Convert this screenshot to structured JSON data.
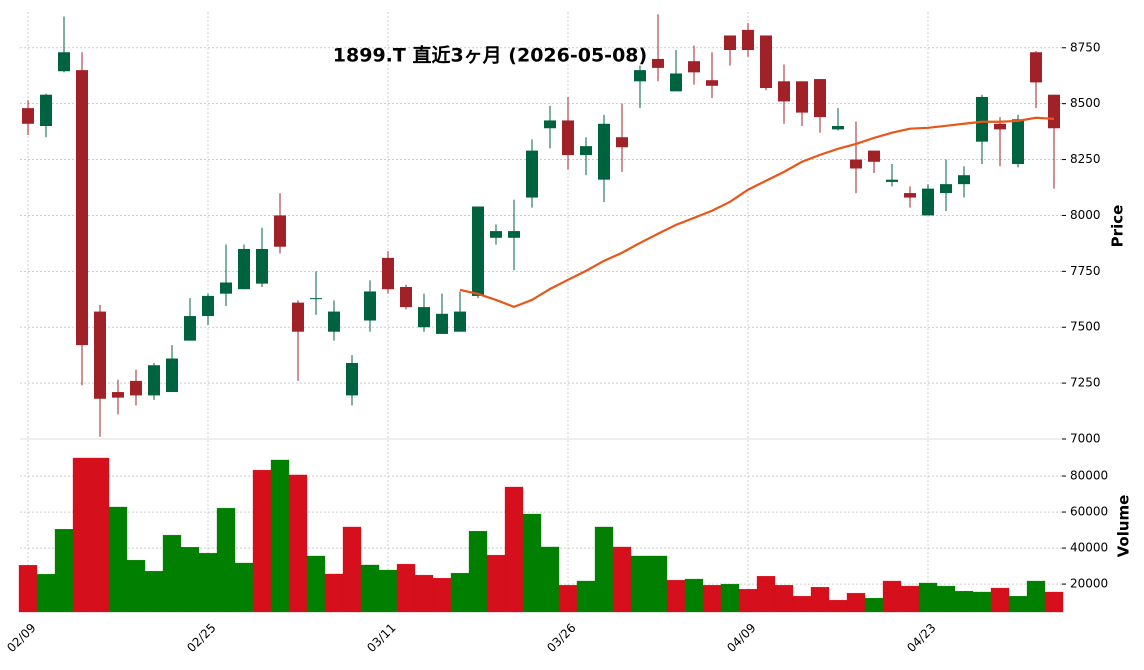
{
  "chart_data": {
    "type": "candlestick",
    "title": "1899.T  直近3ヶ月  (2026-05-08)",
    "categories": [
      "02/09",
      null,
      null,
      null,
      null,
      null,
      null,
      null,
      null,
      null,
      "02/25",
      null,
      null,
      null,
      null,
      null,
      null,
      null,
      null,
      null,
      "03/11",
      null,
      null,
      null,
      null,
      null,
      null,
      null,
      null,
      null,
      "03/26",
      null,
      null,
      null,
      null,
      null,
      null,
      null,
      null,
      null,
      "04/09",
      null,
      null,
      null,
      null,
      null,
      null,
      null,
      null,
      null,
      "04/23",
      null,
      null,
      null,
      null,
      null,
      null,
      null
    ],
    "open": [
      8480,
      8400,
      8645,
      8650,
      7570,
      7210,
      7260,
      7195,
      7210,
      7440,
      7550,
      7650,
      7670,
      7695,
      8000,
      7610,
      7630,
      7480,
      7195,
      7530,
      7810,
      7680,
      7500,
      7470,
      7480,
      7640,
      7900,
      7900,
      8080,
      8390,
      8425,
      8270,
      8160,
      8350,
      8600,
      8700,
      8555,
      8690,
      8605,
      8805,
      8830,
      8805,
      8600,
      8600,
      8610,
      8385,
      8250,
      8290,
      8150,
      8100,
      8000,
      8100,
      8140,
      8330,
      8410,
      8230,
      8730,
      8540
    ],
    "high": [
      8515,
      8545,
      8890,
      8730,
      7600,
      7265,
      7310,
      7340,
      7420,
      7630,
      7650,
      7870,
      7870,
      7945,
      8100,
      7620,
      7750,
      7620,
      7375,
      7710,
      7840,
      7690,
      7650,
      7650,
      7660,
      8040,
      7960,
      8070,
      8340,
      8490,
      8530,
      8350,
      8450,
      8500,
      8670,
      8900,
      8740,
      8760,
      8730,
      8805,
      8860,
      8805,
      8675,
      8600,
      8610,
      8480,
      8420,
      8290,
      8230,
      8130,
      8140,
      8250,
      8220,
      8540,
      8440,
      8450,
      8735,
      8540
    ],
    "low": [
      8360,
      8350,
      8640,
      7240,
      7010,
      7110,
      7150,
      7175,
      7210,
      7440,
      7510,
      7595,
      7670,
      7680,
      7830,
      7260,
      7555,
      7440,
      7150,
      7480,
      7650,
      7580,
      7480,
      7470,
      7480,
      7630,
      7870,
      7755,
      8035,
      8300,
      8205,
      8180,
      8060,
      8195,
      8480,
      8600,
      8555,
      8585,
      8525,
      8670,
      8710,
      8560,
      8410,
      8400,
      8370,
      8380,
      8100,
      8190,
      8130,
      8035,
      8000,
      8020,
      8080,
      8230,
      8220,
      8215,
      8480,
      8120
    ],
    "close": [
      8410,
      8540,
      8730,
      7420,
      7180,
      7185,
      7195,
      7330,
      7360,
      7550,
      7640,
      7700,
      7850,
      7850,
      7860,
      7480,
      7630,
      7570,
      7340,
      7660,
      7670,
      7590,
      7590,
      7560,
      7570,
      8040,
      7930,
      7930,
      8290,
      8425,
      8270,
      8310,
      8410,
      8305,
      8650,
      8660,
      8635,
      8640,
      8580,
      8740,
      8740,
      8570,
      8510,
      8460,
      8440,
      8400,
      8210,
      8240,
      8160,
      8080,
      8120,
      8140,
      8180,
      8530,
      8385,
      8430,
      8595,
      8390
    ],
    "up_color": "#006340",
    "down_color": "#a02128",
    "ma_color": "#e8561a",
    "ma": [
      null,
      null,
      null,
      null,
      null,
      null,
      null,
      null,
      null,
      null,
      null,
      null,
      null,
      null,
      null,
      null,
      null,
      null,
      null,
      null,
      null,
      null,
      null,
      null,
      7667,
      7649,
      7622,
      7591,
      7622,
      7671,
      7712,
      7752,
      7797,
      7833,
      7877,
      7918,
      7958,
      7989,
      8021,
      8061,
      8115,
      8155,
      8195,
      8240,
      8271,
      8298,
      8320,
      8347,
      8370,
      8388,
      8392,
      8401,
      8410,
      8419,
      8419,
      8423,
      8437,
      8432
    ],
    "ylabel": "Price",
    "ylim": [
      7000,
      8910
    ],
    "yticks": [
      7000,
      7250,
      7500,
      7750,
      8000,
      8250,
      8500,
      8750
    ],
    "volume": [
      30500,
      25500,
      50500,
      90000,
      90000,
      62800,
      33300,
      27200,
      47200,
      40500,
      37200,
      62200,
      31700,
      83300,
      88900,
      80600,
      35600,
      25600,
      51700,
      30600,
      27800,
      31100,
      25000,
      23300,
      26100,
      49400,
      36100,
      73900,
      58900,
      40600,
      19400,
      21700,
      51700,
      40600,
      35600,
      35600,
      22200,
      22800,
      19400,
      20000,
      17200,
      24400,
      19400,
      13300,
      18300,
      11100,
      15000,
      12200,
      21700,
      18900,
      20600,
      18900,
      16100,
      15600,
      17800,
      13300,
      21700,
      15600
    ],
    "volume_colors": [
      "#d50f1b",
      "#007f00",
      "#007f00",
      "#d50f1b",
      "#d50f1b",
      "#007f00",
      "#007f00",
      "#007f00",
      "#007f00",
      "#007f00",
      "#007f00",
      "#007f00",
      "#007f00",
      "#d50f1b",
      "#007f00",
      "#d50f1b",
      "#007f00",
      "#d50f1b",
      "#d50f1b",
      "#007f00",
      "#007f00",
      "#d50f1b",
      "#d50f1b",
      "#d50f1b",
      "#007f00",
      "#007f00",
      "#d50f1b",
      "#d50f1b",
      "#007f00",
      "#007f00",
      "#d50f1b",
      "#007f00",
      "#007f00",
      "#d50f1b",
      "#007f00",
      "#007f00",
      "#d50f1b",
      "#007f00",
      "#d50f1b",
      "#007f00",
      "#d50f1b",
      "#d50f1b",
      "#d50f1b",
      "#d50f1b",
      "#d50f1b",
      "#d50f1b",
      "#d50f1b",
      "#007f00",
      "#d50f1b",
      "#d50f1b",
      "#007f00",
      "#007f00",
      "#007f00",
      "#007f00",
      "#d50f1b",
      "#007f00",
      "#007f00",
      "#d50f1b"
    ],
    "volume_ylabel": "Volume",
    "volume_ylim": [
      4500,
      100000
    ],
    "volume_yticks": [
      20000,
      40000,
      60000,
      80000
    ],
    "grid": true
  }
}
